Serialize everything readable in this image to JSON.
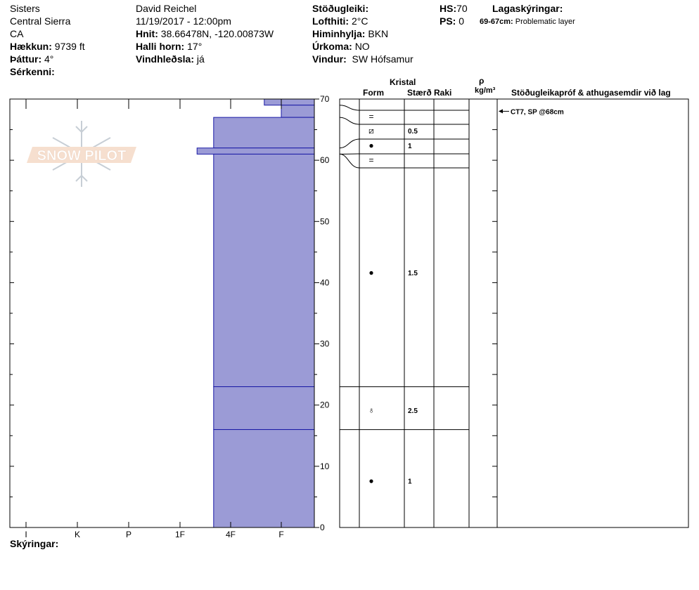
{
  "header": {
    "location": "Sisters",
    "range": "Central Sierra",
    "state": "CA",
    "elevation_label": "Hækkun:",
    "elevation_value": "9739 ft",
    "aspect_label": "Þáttur:",
    "aspect_value": "4°",
    "notes_label": "Sérkenni:",
    "observer": "David Reichel",
    "datetime": "11/19/2017 - 12:00pm",
    "coords_label": "Hnit:",
    "coords_value": "38.66478N, -120.00873W",
    "slope_label": "Halli horn:",
    "slope_value": "17°",
    "wind_loading_label": "Vindhleðsla:",
    "wind_loading_value": "já",
    "stability_label": "Stöðugleiki:",
    "air_temp_label": "Lofthiti:",
    "air_temp_value": "2°C",
    "sky_label": "Himinhylja:",
    "sky_value": "BKN",
    "precip_label": "Úrkoma:",
    "precip_value": "NO",
    "wind_label": "Vindur:",
    "wind_value": "SW Hófsamur",
    "hs_label": "HS:",
    "hs_value": "70",
    "ps_label": "PS:",
    "ps_value": "0",
    "layer_notes_label": "Lagaskýringar:",
    "layer_note_range": "69-67cm:",
    "layer_note_text": "Problematic layer",
    "footer_label": "Skýringar:"
  },
  "watermark": "SNOW PILOT",
  "table_headers": {
    "crystal": "Kristal",
    "form": "Form",
    "size": "Stærð",
    "moisture": "Raki",
    "rho": "ρ",
    "density_unit": "kg/m³",
    "tests": "Stöðugleikapróf & athugasemdir við lag"
  },
  "test_note": "CT7, SP @68cm",
  "chart_data": {
    "type": "bar",
    "orientation": "horizontal-profile",
    "y_axis_ticks": [
      0,
      10,
      20,
      30,
      40,
      50,
      60,
      70
    ],
    "ylim": [
      0,
      70
    ],
    "hardness_categories": [
      "I",
      "K",
      "P",
      "1F",
      "4F",
      "F"
    ],
    "layers": [
      {
        "top": 70,
        "bottom": 69,
        "hardness": "F-"
      },
      {
        "top": 69,
        "bottom": 67,
        "hardness": "F"
      },
      {
        "top": 67,
        "bottom": 62,
        "hardness": "4F-"
      },
      {
        "top": 62,
        "bottom": 61,
        "hardness": "1F+"
      },
      {
        "top": 61,
        "bottom": 23,
        "hardness": "4F-"
      },
      {
        "top": 23,
        "bottom": 16,
        "hardness": "4F-"
      },
      {
        "top": 16,
        "bottom": 0,
        "hardness": "4F-"
      }
    ],
    "crystals": [
      {
        "top": 70,
        "bottom": 69,
        "form": "=",
        "size": ""
      },
      {
        "top": 69,
        "bottom": 67,
        "form": "⧄",
        "size": "0.5"
      },
      {
        "top": 67,
        "bottom": 62,
        "form": "●",
        "size": "1"
      },
      {
        "top": 62,
        "bottom": 61,
        "form": "=",
        "size": ""
      },
      {
        "top": 61,
        "bottom": 23,
        "form": "●",
        "size": "1.5"
      },
      {
        "top": 23,
        "bottom": 16,
        "form": "♁",
        "size": "2.5"
      },
      {
        "top": 16,
        "bottom": 0,
        "form": "●",
        "size": "1"
      }
    ],
    "colors": {
      "fill": "#9b9bd6",
      "edge": "#1a1aa6"
    }
  }
}
